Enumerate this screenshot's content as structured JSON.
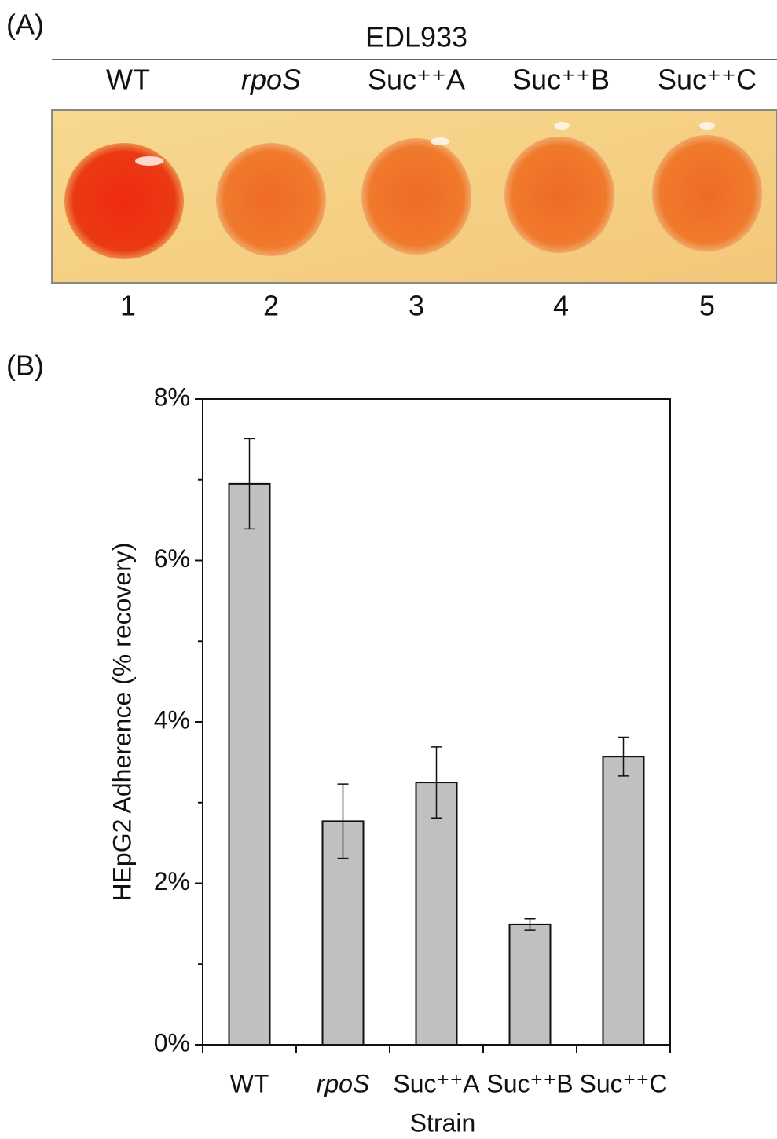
{
  "panel_a": {
    "label": "(A)",
    "title": "EDL933",
    "columns": [
      "WT",
      "rpoS",
      "Suc⁺⁺A",
      "Suc⁺⁺B",
      "Suc⁺⁺C"
    ],
    "numbers": [
      "1",
      "2",
      "3",
      "4",
      "5"
    ]
  },
  "chart_data": {
    "type": "bar",
    "panel_label": "(B)",
    "y_label": "HEpG2 Adherence (% recovery)",
    "x_label": "Strain",
    "categories": [
      "WT",
      "rpoS",
      "Suc⁺⁺A",
      "Suc⁺⁺B",
      "Suc⁺⁺C"
    ],
    "values": [
      6.95,
      2.77,
      3.25,
      1.49,
      3.57
    ],
    "errors": [
      0.56,
      0.46,
      0.44,
      0.07,
      0.24
    ],
    "color": "#c0c0c0",
    "ylim": [
      0,
      8
    ],
    "yticks": [
      {
        "value": 0,
        "label": "0%"
      },
      {
        "value": 2,
        "label": "2%"
      },
      {
        "value": 4,
        "label": "4%"
      },
      {
        "value": 6,
        "label": "6%"
      },
      {
        "value": 8,
        "label": "8%"
      }
    ],
    "minor_yticks": [
      1,
      3,
      5,
      7
    ],
    "grid": false
  }
}
